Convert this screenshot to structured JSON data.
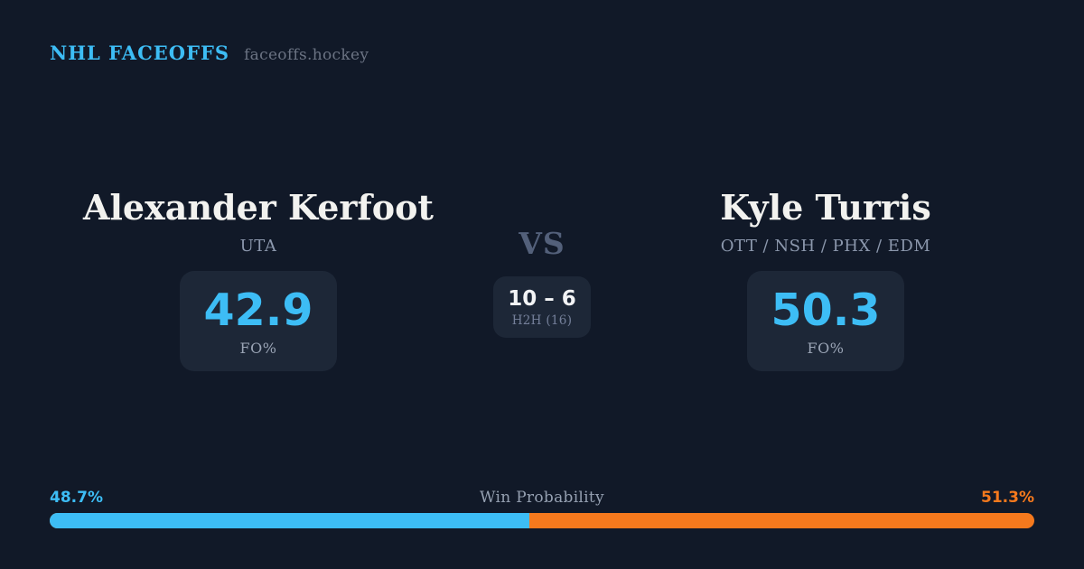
{
  "header": {
    "brand": "NHL FACEOFFS",
    "site": "faceoffs.hockey"
  },
  "matchup": {
    "left_player": {
      "name": "Alexander Kerfoot",
      "teams": "UTA",
      "stat_value": "42.9",
      "stat_label": "FO%"
    },
    "right_player": {
      "name": "Kyle Turris",
      "teams": "OTT / NSH / PHX / EDM",
      "stat_value": "50.3",
      "stat_label": "FO%"
    },
    "vs_label": "VS",
    "h2h": {
      "score": "10 – 6",
      "label": "H2H (16)"
    }
  },
  "win_probability": {
    "title": "Win Probability",
    "left_pct_label": "48.7%",
    "right_pct_label": "51.3%",
    "left_value": 48.7,
    "right_value": 51.3
  },
  "colors": {
    "background": "#111928",
    "card": "#1d2737",
    "accent_blue": "#3dbdf5",
    "accent_orange": "#f5791d",
    "text_primary": "#f2f2ef",
    "text_slate": "#8c98ad",
    "text_muted": "#75809a"
  }
}
